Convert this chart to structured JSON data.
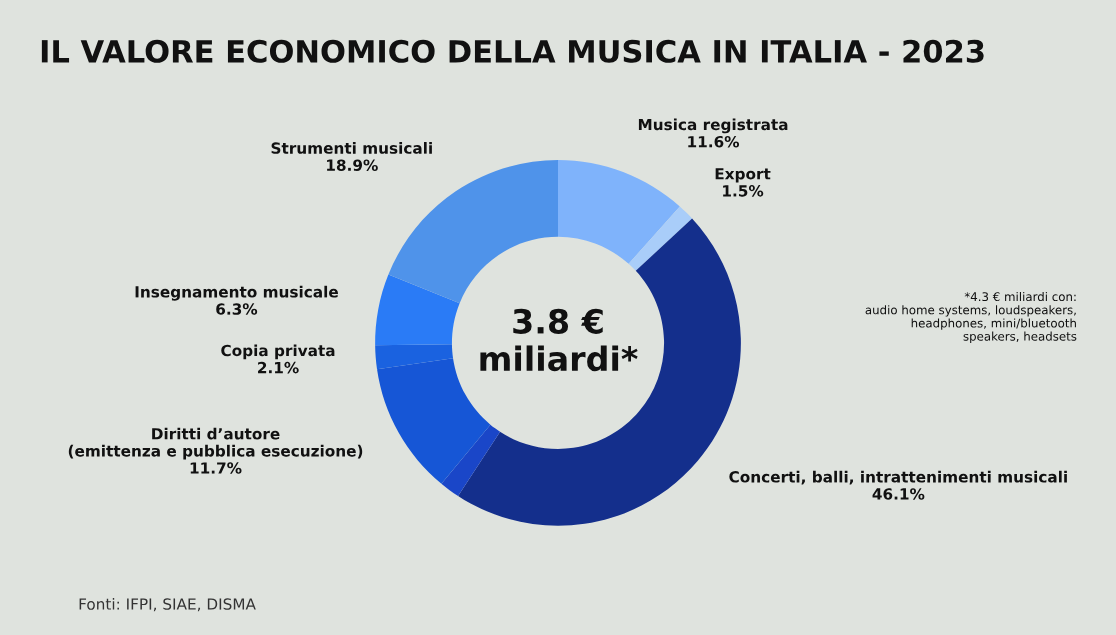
{
  "chart_data": {
    "type": "donut",
    "title": "IL VALORE ECONOMICO DELLA MUSICA IN ITALIA - 2023",
    "categories": [
      "Musica registrata",
      "Export",
      "Concerti, balli, intrattenimenti musicali",
      null,
      "Diritti d’autore\n(emittenza e pubblica esecuzione)",
      "Copia privata",
      "Insegnamento musicale",
      "Strumenti musicali"
    ],
    "values": [
      11.6,
      1.5,
      46.1,
      1.8,
      11.7,
      2.1,
      6.3,
      18.9
    ],
    "value_labels": [
      "11.6%",
      "1.5%",
      "46.1%",
      null,
      "11.7%",
      "2.1%",
      "6.3%",
      "18.9%"
    ],
    "colors": [
      "#7fb3fb",
      "#a9cdf9",
      "#142f8c",
      "#1a46c8",
      "#1656d6",
      "#1a62e0",
      "#2a7bf6",
      "#4f93ea"
    ],
    "annotations": [
      "3.8 €\nmiliardi*",
      "*4.3 € miliardi con:\naudio home systems, loudspeakers,\nheadphones, mini/bluetooth\nspeakers, headsets",
      "Fonti: IFPI, SIAE, DISMA"
    ]
  }
}
